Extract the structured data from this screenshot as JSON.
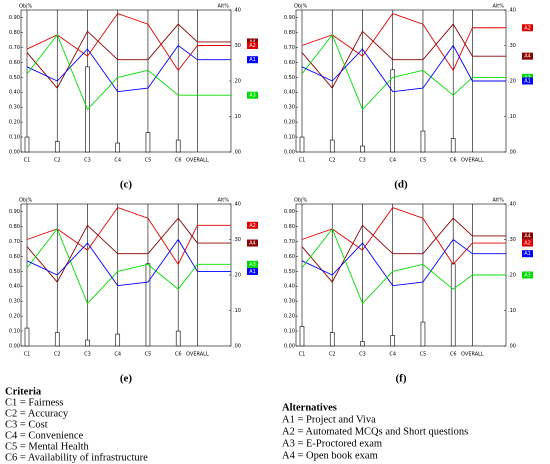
{
  "chart_data": [
    {
      "type": "line",
      "title": "(c)",
      "ylabel": "Obj%",
      "y2label": "Alt%",
      "categories": [
        "C1",
        "C2",
        "C3",
        "C4",
        "C5",
        "C6",
        "OVERALL"
      ],
      "values": [
        0.1,
        0.07,
        0.57,
        0.06,
        0.13,
        0.08,
        null
      ],
      "ylim": [
        0,
        0.95
      ],
      "yticks": [
        {
          "value": 0,
          "label": "0.00"
        },
        {
          "value": 0.1,
          "label": "0.10"
        },
        {
          "value": 0.2,
          "label": "0.20"
        },
        {
          "value": 0.3,
          "label": "0.30"
        },
        {
          "value": 0.4,
          "label": "0.40"
        },
        {
          "value": 0.5,
          "label": "0.50"
        },
        {
          "value": 0.6,
          "label": "0.60"
        },
        {
          "value": 0.7,
          "label": "0.70"
        },
        {
          "value": 0.8,
          "label": "0.80"
        },
        {
          "value": 0.9,
          "label": "0.90"
        }
      ],
      "y2lim": [
        0,
        0.4
      ],
      "y2ticks": [
        {
          "value": 0,
          "label": ".00"
        },
        {
          "value": 0.1,
          "label": ".10"
        },
        {
          "value": 0.2,
          "label": ".20"
        },
        {
          "value": 0.3,
          "label": ".30"
        },
        {
          "value": 0.4,
          "label": ".40"
        }
      ],
      "series": [
        {
          "name": "A4",
          "color": "#8b0000",
          "axis": "y2",
          "values": [
            0.28,
            0.18,
            0.34,
            0.26,
            0.26,
            0.36,
            0.31
          ]
        },
        {
          "name": "A2",
          "color": "#e00000",
          "axis": "y2",
          "values": [
            0.29,
            0.33,
            0.27,
            0.39,
            0.36,
            0.23,
            0.3
          ]
        },
        {
          "name": "A1",
          "color": "#0000ff",
          "axis": "y2",
          "values": [
            0.24,
            0.2,
            0.29,
            0.17,
            0.18,
            0.3,
            0.26
          ]
        },
        {
          "name": "A3",
          "color": "#00dd00",
          "axis": "y2",
          "values": [
            0.22,
            0.33,
            0.12,
            0.21,
            0.23,
            0.16,
            0.16
          ]
        }
      ]
    },
    {
      "type": "line",
      "title": "(d)",
      "ylabel": "Obj%",
      "y2label": "Alt%",
      "categories": [
        "C1",
        "C2",
        "C3",
        "C4",
        "C5",
        "C6",
        "OVERALL"
      ],
      "values": [
        0.1,
        0.08,
        0.04,
        0.55,
        0.14,
        0.09,
        null
      ],
      "ylim": [
        0,
        0.95
      ],
      "yticks": [
        {
          "value": 0,
          "label": "0.00"
        },
        {
          "value": 0.1,
          "label": "0.10"
        },
        {
          "value": 0.2,
          "label": "0.20"
        },
        {
          "value": 0.3,
          "label": "0.30"
        },
        {
          "value": 0.4,
          "label": "0.40"
        },
        {
          "value": 0.5,
          "label": "0.50"
        },
        {
          "value": 0.6,
          "label": "0.60"
        },
        {
          "value": 0.7,
          "label": "0.70"
        },
        {
          "value": 0.8,
          "label": "0.80"
        },
        {
          "value": 0.9,
          "label": "0.90"
        }
      ],
      "y2lim": [
        0,
        0.4
      ],
      "y2ticks": [
        {
          "value": 0,
          "label": ".00"
        },
        {
          "value": 0.1,
          "label": ".10"
        },
        {
          "value": 0.2,
          "label": ".20"
        },
        {
          "value": 0.3,
          "label": ".30"
        },
        {
          "value": 0.4,
          "label": ".40"
        }
      ],
      "series": [
        {
          "name": "A2",
          "color": "#e00000",
          "axis": "y2",
          "values": [
            0.3,
            0.33,
            0.27,
            0.39,
            0.36,
            0.23,
            0.35
          ]
        },
        {
          "name": "A4",
          "color": "#8b0000",
          "axis": "y2",
          "values": [
            0.28,
            0.18,
            0.34,
            0.26,
            0.26,
            0.36,
            0.27
          ]
        },
        {
          "name": "A3",
          "color": "#00dd00",
          "axis": "y2",
          "values": [
            0.22,
            0.33,
            0.12,
            0.21,
            0.23,
            0.16,
            0.21
          ]
        },
        {
          "name": "A1",
          "color": "#0000ff",
          "axis": "y2",
          "values": [
            0.24,
            0.2,
            0.29,
            0.17,
            0.18,
            0.3,
            0.2
          ]
        }
      ]
    },
    {
      "type": "line",
      "title": "(e)",
      "ylabel": "Obj%",
      "y2label": "Alt%",
      "categories": [
        "C1",
        "C2",
        "C3",
        "C4",
        "C5",
        "C6",
        "OVERALL"
      ],
      "values": [
        0.12,
        0.09,
        0.04,
        0.08,
        0.55,
        0.1,
        null
      ],
      "ylim": [
        0,
        0.95
      ],
      "yticks": [
        {
          "value": 0,
          "label": "0.00"
        },
        {
          "value": 0.1,
          "label": "0.10"
        },
        {
          "value": 0.2,
          "label": "0.20"
        },
        {
          "value": 0.3,
          "label": "0.30"
        },
        {
          "value": 0.4,
          "label": "0.40"
        },
        {
          "value": 0.5,
          "label": "0.50"
        },
        {
          "value": 0.6,
          "label": "0.60"
        },
        {
          "value": 0.7,
          "label": "0.70"
        },
        {
          "value": 0.8,
          "label": "0.80"
        },
        {
          "value": 0.9,
          "label": "0.90"
        }
      ],
      "y2lim": [
        0,
        0.4
      ],
      "y2ticks": [
        {
          "value": 0,
          "label": ".00"
        },
        {
          "value": 0.1,
          "label": ".10"
        },
        {
          "value": 0.2,
          "label": ".20"
        },
        {
          "value": 0.3,
          "label": ".30"
        },
        {
          "value": 0.4,
          "label": ".40"
        }
      ],
      "series": [
        {
          "name": "A2",
          "color": "#e00000",
          "axis": "y2",
          "values": [
            0.3,
            0.33,
            0.27,
            0.39,
            0.36,
            0.23,
            0.34
          ]
        },
        {
          "name": "A4",
          "color": "#8b0000",
          "axis": "y2",
          "values": [
            0.28,
            0.18,
            0.34,
            0.26,
            0.26,
            0.36,
            0.29
          ]
        },
        {
          "name": "A3",
          "color": "#00dd00",
          "axis": "y2",
          "values": [
            0.22,
            0.33,
            0.12,
            0.21,
            0.23,
            0.16,
            0.23
          ]
        },
        {
          "name": "A1",
          "color": "#0000ff",
          "axis": "y2",
          "values": [
            0.24,
            0.2,
            0.29,
            0.17,
            0.18,
            0.3,
            0.21
          ]
        }
      ]
    },
    {
      "type": "line",
      "title": "(f)",
      "ylabel": "Obj%",
      "y2label": "Alt%",
      "categories": [
        "C1",
        "C2",
        "C3",
        "C4",
        "C5",
        "C6",
        "OVERALL"
      ],
      "values": [
        0.13,
        0.09,
        0.03,
        0.07,
        0.16,
        0.55,
        null
      ],
      "ylim": [
        0,
        0.95
      ],
      "yticks": [
        {
          "value": 0,
          "label": "0.00"
        },
        {
          "value": 0.1,
          "label": "0.10"
        },
        {
          "value": 0.2,
          "label": "0.20"
        },
        {
          "value": 0.3,
          "label": "0.30"
        },
        {
          "value": 0.4,
          "label": "0.40"
        },
        {
          "value": 0.5,
          "label": "0.50"
        },
        {
          "value": 0.6,
          "label": "0.60"
        },
        {
          "value": 0.7,
          "label": "0.70"
        },
        {
          "value": 0.8,
          "label": "0.80"
        },
        {
          "value": 0.9,
          "label": "0.90"
        }
      ],
      "y2lim": [
        0,
        0.4
      ],
      "y2ticks": [
        {
          "value": 0,
          "label": ".00"
        },
        {
          "value": 0.1,
          "label": ".10"
        },
        {
          "value": 0.2,
          "label": ".20"
        },
        {
          "value": 0.3,
          "label": ".30"
        },
        {
          "value": 0.4,
          "label": ".40"
        }
      ],
      "series": [
        {
          "name": "A4",
          "color": "#8b0000",
          "axis": "y2",
          "values": [
            0.28,
            0.18,
            0.34,
            0.26,
            0.26,
            0.36,
            0.31
          ]
        },
        {
          "name": "A2",
          "color": "#e00000",
          "axis": "y2",
          "values": [
            0.3,
            0.33,
            0.27,
            0.39,
            0.36,
            0.23,
            0.29
          ]
        },
        {
          "name": "A1",
          "color": "#0000ff",
          "axis": "y2",
          "values": [
            0.24,
            0.2,
            0.29,
            0.17,
            0.18,
            0.3,
            0.26
          ]
        },
        {
          "name": "A3",
          "color": "#00dd00",
          "axis": "y2",
          "values": [
            0.22,
            0.33,
            0.12,
            0.21,
            0.23,
            0.16,
            0.2
          ]
        }
      ]
    }
  ],
  "legend": {
    "criteria_title": "Criteria",
    "criteria": [
      "C1 = Fairness",
      "C2 = Accuracy",
      "C3 = Cost",
      "C4 = Convenience",
      "C5 = Mental Health",
      "C6 = Availability of infrastructure"
    ],
    "alternatives_title": "Alternatives",
    "alternatives": [
      "A1 = Project and Viva",
      "A2 = Automated MCQs and Short questions",
      "A3 = E-Proctored exam",
      "A4 = Open book exam"
    ]
  }
}
